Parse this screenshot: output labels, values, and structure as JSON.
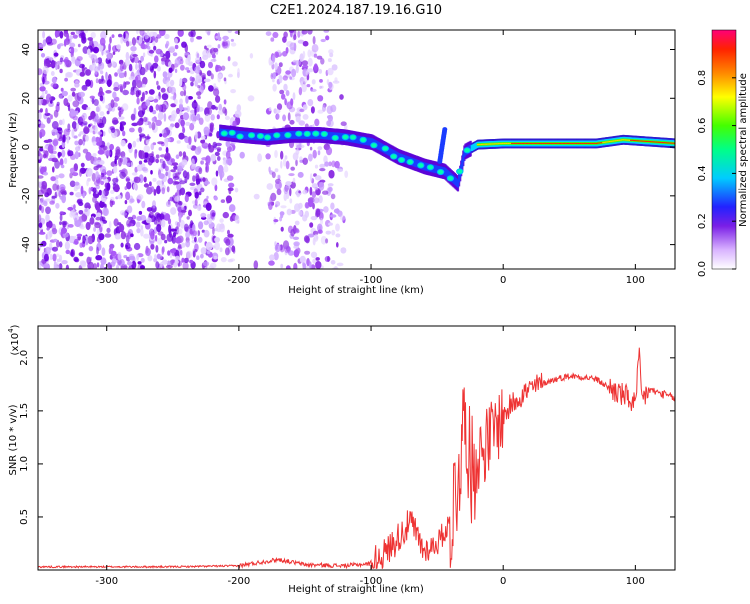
{
  "title": "C2E1.2024.187.19.16.G10",
  "chart_data": [
    {
      "type": "heatmap",
      "xlabel": "Height of straight line (km)",
      "ylabel": "Frequency (Hz)",
      "xlim": [
        -352,
        130
      ],
      "ylim": [
        -50,
        48
      ],
      "x_ticks": [
        -300,
        -200,
        -100,
        0,
        100
      ],
      "y_ticks": [
        -40,
        -20,
        0,
        20,
        40
      ],
      "colorbar": {
        "label": "Normalized spectral amplitude",
        "range": [
          0,
          1
        ],
        "ticks": [
          0.0,
          0.2,
          0.4,
          0.6,
          0.8
        ]
      },
      "ridge": [
        {
          "x": -215,
          "y": 6
        },
        {
          "x": -200,
          "y": 5
        },
        {
          "x": -180,
          "y": 4
        },
        {
          "x": -160,
          "y": 5
        },
        {
          "x": -140,
          "y": 5
        },
        {
          "x": -120,
          "y": 4
        },
        {
          "x": -100,
          "y": 2
        },
        {
          "x": -80,
          "y": -4
        },
        {
          "x": -60,
          "y": -8
        },
        {
          "x": -45,
          "y": -10
        },
        {
          "x": -35,
          "y": -15
        },
        {
          "x": -30,
          "y": -2
        },
        {
          "x": -20,
          "y": 1
        },
        {
          "x": 0,
          "y": 1.5
        },
        {
          "x": 40,
          "y": 1.5
        },
        {
          "x": 70,
          "y": 1.5
        },
        {
          "x": 90,
          "y": 3
        },
        {
          "x": 130,
          "y": 1.5
        }
      ]
    },
    {
      "type": "line",
      "xlabel": "Height of straight line (km)",
      "ylabel": "SNR (10 * v/v)",
      "y_multiplier": "(x10",
      "y_exponent": "4",
      "y_multiplier_close": ")",
      "xlim": [
        -352,
        130
      ],
      "ylim": [
        0,
        2.3
      ],
      "x_ticks": [
        -300,
        -200,
        -100,
        0,
        100
      ],
      "y_ticks": [
        0.5,
        1.0,
        1.5,
        2.0
      ],
      "y_tick_labels": [
        "0.5",
        "1.0",
        "1.5",
        "2.0"
      ],
      "color": "#ee3333",
      "x": [
        -352,
        -300,
        -250,
        -200,
        -180,
        -170,
        -150,
        -120,
        -100,
        -90,
        -80,
        -70,
        -60,
        -50,
        -40,
        -35,
        -30,
        -28,
        -25,
        -20,
        -15,
        -10,
        -5,
        0,
        10,
        20,
        30,
        40,
        50,
        60,
        70,
        80,
        90,
        95,
        100,
        103,
        105,
        110,
        120,
        130
      ],
      "y": [
        0.03,
        0.03,
        0.03,
        0.04,
        0.08,
        0.1,
        0.05,
        0.04,
        0.06,
        0.15,
        0.3,
        0.45,
        0.18,
        0.25,
        0.45,
        0.8,
        1.35,
        1.5,
        0.9,
        1.05,
        1.15,
        1.25,
        1.35,
        1.45,
        1.62,
        1.7,
        1.76,
        1.8,
        1.83,
        1.82,
        1.8,
        1.72,
        1.65,
        1.62,
        1.55,
        2.0,
        1.6,
        1.7,
        1.66,
        1.62
      ]
    }
  ]
}
